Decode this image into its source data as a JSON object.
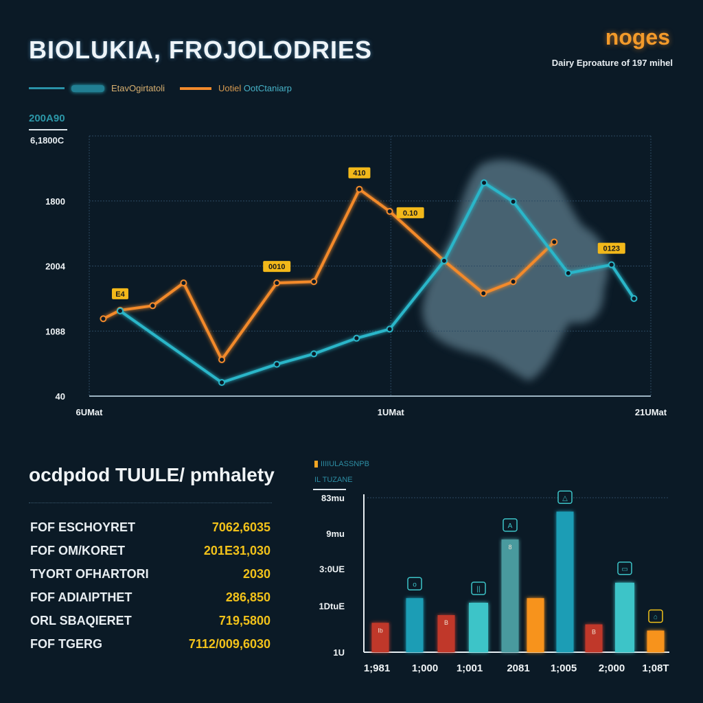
{
  "header": {
    "title": "BIOLUKIA, FROJOLODRIES",
    "brand": "noges",
    "subtitle": "Dairy Eproature of 197 mihel"
  },
  "legend": [
    {
      "label": "EtavOgirtatoli",
      "color": "#2ab6c9"
    },
    {
      "label_a": "Uotiel",
      "label_b": "OotCtaniarp",
      "color": "#f38a2c"
    }
  ],
  "colors": {
    "teal": "#2ab6c9",
    "orange": "#f38a2c",
    "red": "#c0392b",
    "cyan": "#3cc4c8",
    "yellow": "#f2c21a"
  },
  "table": {
    "title": "ocdpdod TUULE/ pmhalety",
    "rows": [
      {
        "label": "FOF ESCHOYRET",
        "value": "7062,6035"
      },
      {
        "label": "FOF OM/KORET",
        "value": "201E31,030"
      },
      {
        "label": "TYORT OFHARTORI",
        "value": "2030"
      },
      {
        "label": "FOF ADIAIPTHET",
        "value": "286,850"
      },
      {
        "label": "ORL SBAQIERET",
        "value": "719,5800"
      },
      {
        "label": "FOF TGERG",
        "value": "7112/009,6030"
      }
    ]
  },
  "chart_data": [
    {
      "type": "line",
      "title": "BIOLUKIA, FROJOLODRIES",
      "y_header": "200A90",
      "y_unit_label": "6,1800C",
      "yticks": [
        {
          "value": 0,
          "label": "40"
        },
        {
          "value": 1,
          "label": "1088"
        },
        {
          "value": 2,
          "label": "2004"
        },
        {
          "value": 3,
          "label": "1800"
        },
        {
          "value": 4,
          "label": ""
        }
      ],
      "ylim": [
        0,
        4
      ],
      "xlim": [
        0,
        100
      ],
      "xticks": [
        {
          "value": 0,
          "label": "6UMat"
        },
        {
          "value": 53.7,
          "label": "1UMat"
        },
        {
          "value": 100,
          "label": "21UMat"
        }
      ],
      "grid": true,
      "legend_position": "top-left",
      "series": [
        {
          "name": "Uotiel OotCtaniarp",
          "color": "#f38a2c",
          "x": [
            2.5,
            5.5,
            11.3,
            16.8,
            23.6,
            33.4,
            40,
            48.1,
            53.5,
            63.2,
            70.2,
            75.5,
            82.8
          ],
          "y": [
            1.19,
            1.32,
            1.39,
            1.74,
            0.56,
            1.74,
            1.76,
            3.18,
            2.84,
            2.08,
            1.58,
            1.76,
            2.37
          ],
          "labels": [
            {
              "index": 1,
              "text": "E4"
            },
            {
              "index": 5,
              "text": "0010"
            },
            {
              "index": 7,
              "text": "410"
            },
            {
              "index": 8,
              "text": "0.10"
            }
          ]
        },
        {
          "name": "EtavOgirtatoli",
          "color": "#2ab6c9",
          "x": [
            5.5,
            23.6,
            33.4,
            40,
            47.6,
            53.5,
            63.2,
            70.3,
            75.5,
            85.3,
            93,
            97
          ],
          "y": [
            1.31,
            0.21,
            0.49,
            0.65,
            0.89,
            1.03,
            2.08,
            3.28,
            2.99,
            1.89,
            2.02,
            1.5
          ],
          "labels": [
            {
              "index": 10,
              "text": "0123"
            }
          ]
        }
      ]
    },
    {
      "type": "bar",
      "legend": [
        "IIIIULASSNPB",
        "IL TUZANE"
      ],
      "yticks": [
        {
          "value": 0,
          "label": "1U"
        },
        {
          "value": 30,
          "label": "1DtuE"
        },
        {
          "value": 54,
          "label": "3:0UE"
        },
        {
          "value": 77,
          "label": "9mu"
        },
        {
          "value": 100,
          "label": "83mu"
        }
      ],
      "ylim": [
        0,
        100
      ],
      "categories": [
        "1;981",
        "1;000",
        "1;001",
        "2081",
        "1;005",
        "2;000",
        "1;08T"
      ],
      "bars": [
        {
          "value": 19,
          "color": "#c0392b",
          "mark": "Ib"
        },
        {
          "value": 35,
          "color": "#1a9db5",
          "badge": "o"
        },
        {
          "value": 24,
          "color": "#c0392b",
          "mark": "B"
        },
        {
          "value": 32,
          "color": "#3cc4c8",
          "badge": "||"
        },
        {
          "value": 73,
          "color": "#4a9a9e",
          "badge": "A",
          "mark": "8"
        },
        {
          "value": 35,
          "color": "#f7931e"
        },
        {
          "value": 91,
          "color": "#1a9db5",
          "badge": "△"
        },
        {
          "value": 18,
          "color": "#c0392b",
          "mark": "B"
        },
        {
          "value": 45,
          "color": "#3cc4c8",
          "badge": "▭"
        },
        {
          "value": 14,
          "color": "#f7931e",
          "badge": "⌂"
        }
      ]
    }
  ]
}
